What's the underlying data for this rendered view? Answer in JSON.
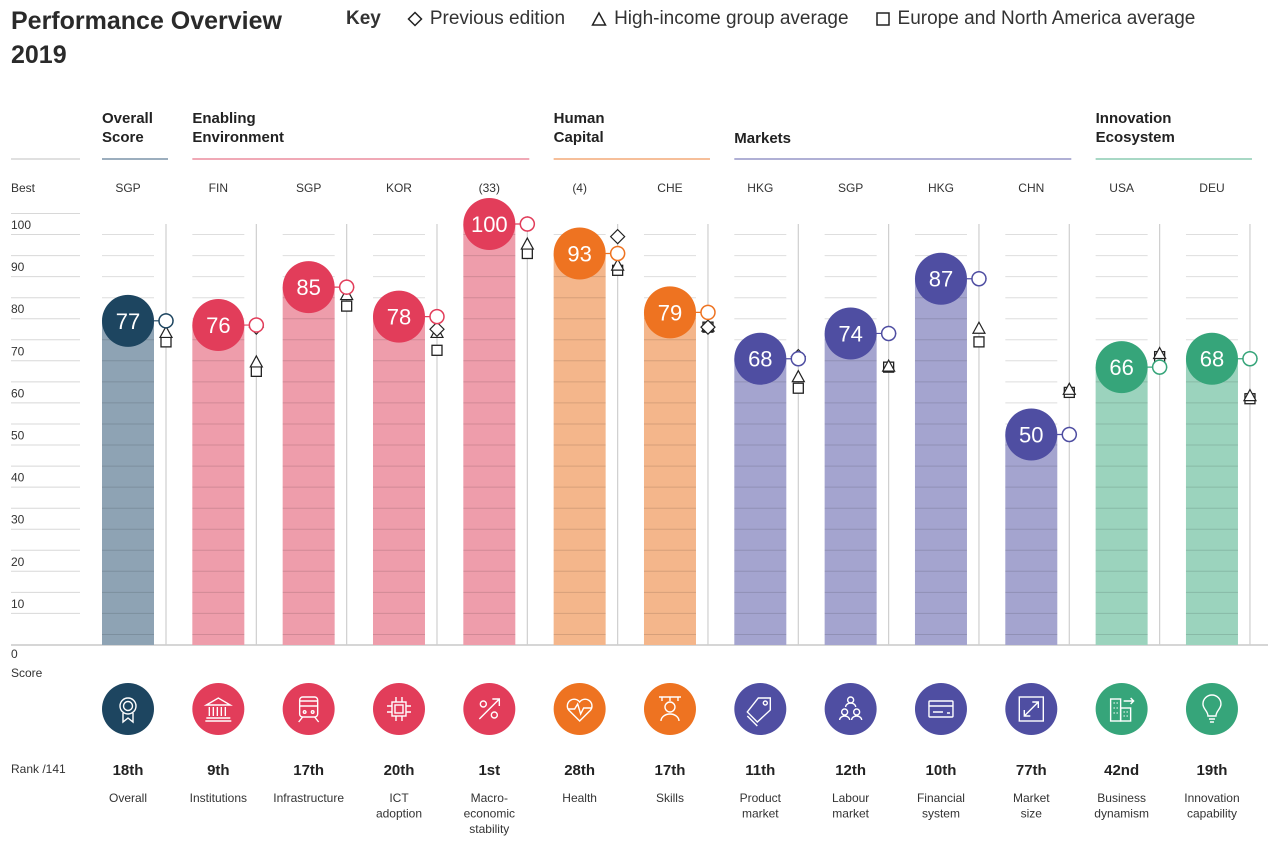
{
  "title": "Performance Overview 2019",
  "key": {
    "label": "Key",
    "items": [
      {
        "symbol": "diamond",
        "label": "Previous edition"
      },
      {
        "symbol": "triangle",
        "label": "High-income group average"
      },
      {
        "symbol": "square",
        "label": "Europe and North America average"
      }
    ]
  },
  "chart_data": {
    "type": "bar",
    "title": "Performance Overview 2019",
    "ylabel": "Score",
    "ylim": [
      0,
      100
    ],
    "yticks": [
      0,
      10,
      20,
      30,
      40,
      50,
      60,
      70,
      80,
      90,
      100
    ],
    "grid": true,
    "best_label": "Best",
    "score_label": "Score",
    "rank_label": "Rank /141",
    "legend_position": "top",
    "pillars": [
      {
        "name": "Overall Score",
        "lines": [
          "Overall",
          "Score"
        ],
        "color": "#1d4560",
        "bar_color": "#8ea3b4",
        "columns": [
          0
        ]
      },
      {
        "name": "Enabling Environment",
        "lines": [
          "Enabling",
          "Environment"
        ],
        "color": "#e23d5a",
        "bar_color": "#ee9dab",
        "columns": [
          1,
          2,
          3,
          4
        ]
      },
      {
        "name": "Human Capital",
        "lines": [
          "Human",
          "Capital"
        ],
        "color": "#ee7321",
        "bar_color": "#f4b68b",
        "columns": [
          5,
          6
        ]
      },
      {
        "name": "Markets",
        "lines": [
          "Markets"
        ],
        "color": "#4f4ea2",
        "bar_color": "#a4a4cf",
        "columns": [
          7,
          8,
          9,
          10
        ]
      },
      {
        "name": "Innovation Ecosystem",
        "lines": [
          "Innovation",
          "Ecosystem"
        ],
        "color": "#36a57a",
        "bar_color": "#9bd3bd",
        "columns": [
          11,
          12
        ]
      }
    ],
    "categories": [
      "Overall",
      "Institutions",
      "Infrastructure",
      "ICT adoption",
      "Macro-economic stability",
      "Health",
      "Skills",
      "Product market",
      "Labour market",
      "Financial system",
      "Market size",
      "Business dynamism",
      "Innovation capability"
    ],
    "columns": [
      {
        "label_lines": [
          "Overall"
        ],
        "best": "SGP",
        "score": 77,
        "rank": "18th",
        "icon": "award-ribbon-icon",
        "prev": 77,
        "high_income": 74,
        "europe_na": 72
      },
      {
        "label_lines": [
          "Institutions"
        ],
        "best": "FIN",
        "score": 76,
        "rank": "9th",
        "icon": "institution-building-icon",
        "prev": 75.5,
        "high_income": 67,
        "europe_na": 65
      },
      {
        "label_lines": [
          "Infrastructure"
        ],
        "best": "SGP",
        "score": 85,
        "rank": "17th",
        "icon": "train-icon",
        "prev": 85,
        "high_income": 83,
        "europe_na": 80.5
      },
      {
        "label_lines": [
          "ICT",
          "adoption"
        ],
        "best": "KOR",
        "score": 78,
        "rank": "20th",
        "icon": "microchip-icon",
        "prev": 75,
        "high_income": 74,
        "europe_na": 70
      },
      {
        "label_lines": [
          "Macro-",
          "economic",
          "stability"
        ],
        "best": "(33)",
        "score": 100,
        "rank": "1st",
        "icon": "percent-growth-icon",
        "prev": 100,
        "high_income": 95,
        "europe_na": 93
      },
      {
        "label_lines": [
          "Health"
        ],
        "best": "(4)",
        "score": 93,
        "rank": "28th",
        "icon": "heart-pulse-icon",
        "prev": 97,
        "high_income": 90,
        "europe_na": 89
      },
      {
        "label_lines": [
          "Skills"
        ],
        "best": "CHE",
        "score": 79,
        "rank": "17th",
        "icon": "graduate-icon",
        "prev": 75.5,
        "high_income": 75.5,
        "europe_na": 75.5
      },
      {
        "label_lines": [
          "Product",
          "market"
        ],
        "best": "HKG",
        "score": 68,
        "rank": "11th",
        "icon": "price-tag-icon",
        "prev": 68.5,
        "high_income": 63.5,
        "europe_na": 61
      },
      {
        "label_lines": [
          "Labour",
          "market"
        ],
        "best": "SGP",
        "score": 74,
        "rank": "12th",
        "icon": "people-network-icon",
        "prev": 74,
        "high_income": 66,
        "europe_na": 66
      },
      {
        "label_lines": [
          "Financial",
          "system"
        ],
        "best": "HKG",
        "score": 87,
        "rank": "10th",
        "icon": "credit-card-icon",
        "prev": 87,
        "high_income": 75,
        "europe_na": 72
      },
      {
        "label_lines": [
          "Market",
          "size"
        ],
        "best": "CHN",
        "score": 50,
        "rank": "77th",
        "icon": "expand-arrows-icon",
        "prev": 50,
        "high_income": 60.5,
        "europe_na": 60
      },
      {
        "label_lines": [
          "Business",
          "dynamism"
        ],
        "best": "USA",
        "score": 66,
        "rank": "42nd",
        "icon": "business-building-icon",
        "prev": 66,
        "high_income": 69,
        "europe_na": 68.5
      },
      {
        "label_lines": [
          "Innovation",
          "capability"
        ],
        "best": "DEU",
        "score": 68,
        "rank": "19th",
        "icon": "lightbulb-icon",
        "prev": 68,
        "high_income": 59,
        "europe_na": 58.5
      }
    ]
  }
}
